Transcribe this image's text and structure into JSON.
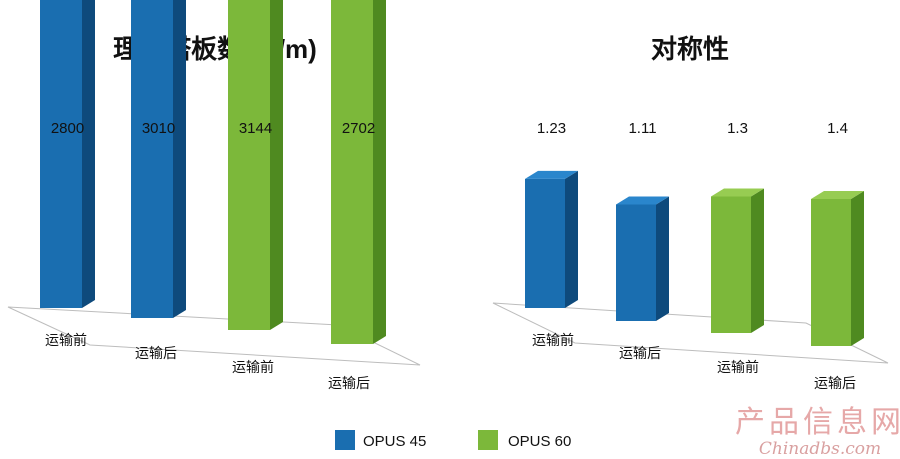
{
  "chart_data": [
    {
      "type": "bar",
      "title": "理论塔板数 (N/m)",
      "categories": [
        "运输前",
        "运输后",
        "运输前",
        "运输后"
      ],
      "values": [
        2800,
        3010,
        3144,
        2702
      ],
      "value_labels": [
        "2800",
        "3010",
        "3144",
        "2702"
      ],
      "bar_series": [
        "OPUS 45",
        "OPUS 45",
        "OPUS 60",
        "OPUS 60"
      ],
      "ylim": [
        0,
        3300
      ],
      "grid": false
    },
    {
      "type": "bar",
      "title": "对称性",
      "categories": [
        "运输前",
        "运输后",
        "运输前",
        "运输后"
      ],
      "values": [
        1.23,
        1.11,
        1.3,
        1.4
      ],
      "value_labels": [
        "1.23",
        "1.11",
        "1.3",
        "1.4"
      ],
      "bar_series": [
        "OPUS 45",
        "OPUS 45",
        "OPUS 60",
        "OPUS 60"
      ],
      "ylim": [
        0,
        1.6
      ],
      "grid": false
    }
  ],
  "legend": {
    "placement": "bottom-center",
    "items": [
      {
        "name": "OPUS 45",
        "color": "#1a6eb0"
      },
      {
        "name": "OPUS 60",
        "color": "#7cb83a"
      }
    ]
  },
  "colors": {
    "OPUS 45": {
      "front": "#1a6eb0",
      "side": "#0e4a7c",
      "top": "#2a86cc"
    },
    "OPUS 60": {
      "front": "#7cb83a",
      "side": "#4f8a20",
      "top": "#97cc52"
    }
  },
  "watermark": {
    "cn": "产品信息网",
    "en": "Chinadbs.com"
  }
}
